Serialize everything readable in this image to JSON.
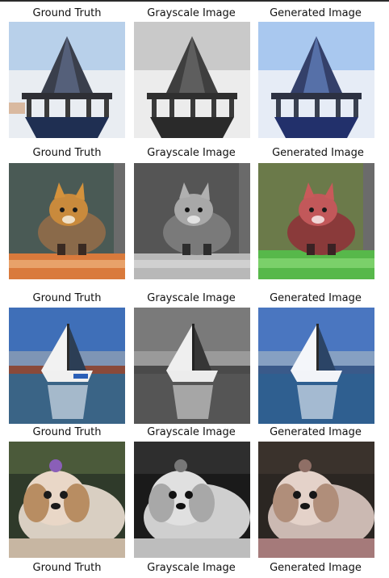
{
  "rows": [
    {
      "labels": [
        "Ground Truth",
        "Grayscale Image",
        "Generated Image"
      ],
      "subject": "pagoda-roof-structure"
    },
    {
      "labels": [
        "Ground Truth",
        "Grayscale Image",
        "Generated Image"
      ],
      "subject": "fox-cat-on-ground"
    },
    {
      "labels": [
        "Ground Truth",
        "Grayscale Image",
        "Generated Image"
      ],
      "subject": "sailboat-on-water"
    },
    {
      "labels": [
        "Ground Truth",
        "Grayscale Image",
        "Generated Image"
      ],
      "subject": "shih-tzu-dog"
    }
  ],
  "bottom_labels": [
    "Ground Truth",
    "Grayscale Image",
    "Generated Image"
  ]
}
